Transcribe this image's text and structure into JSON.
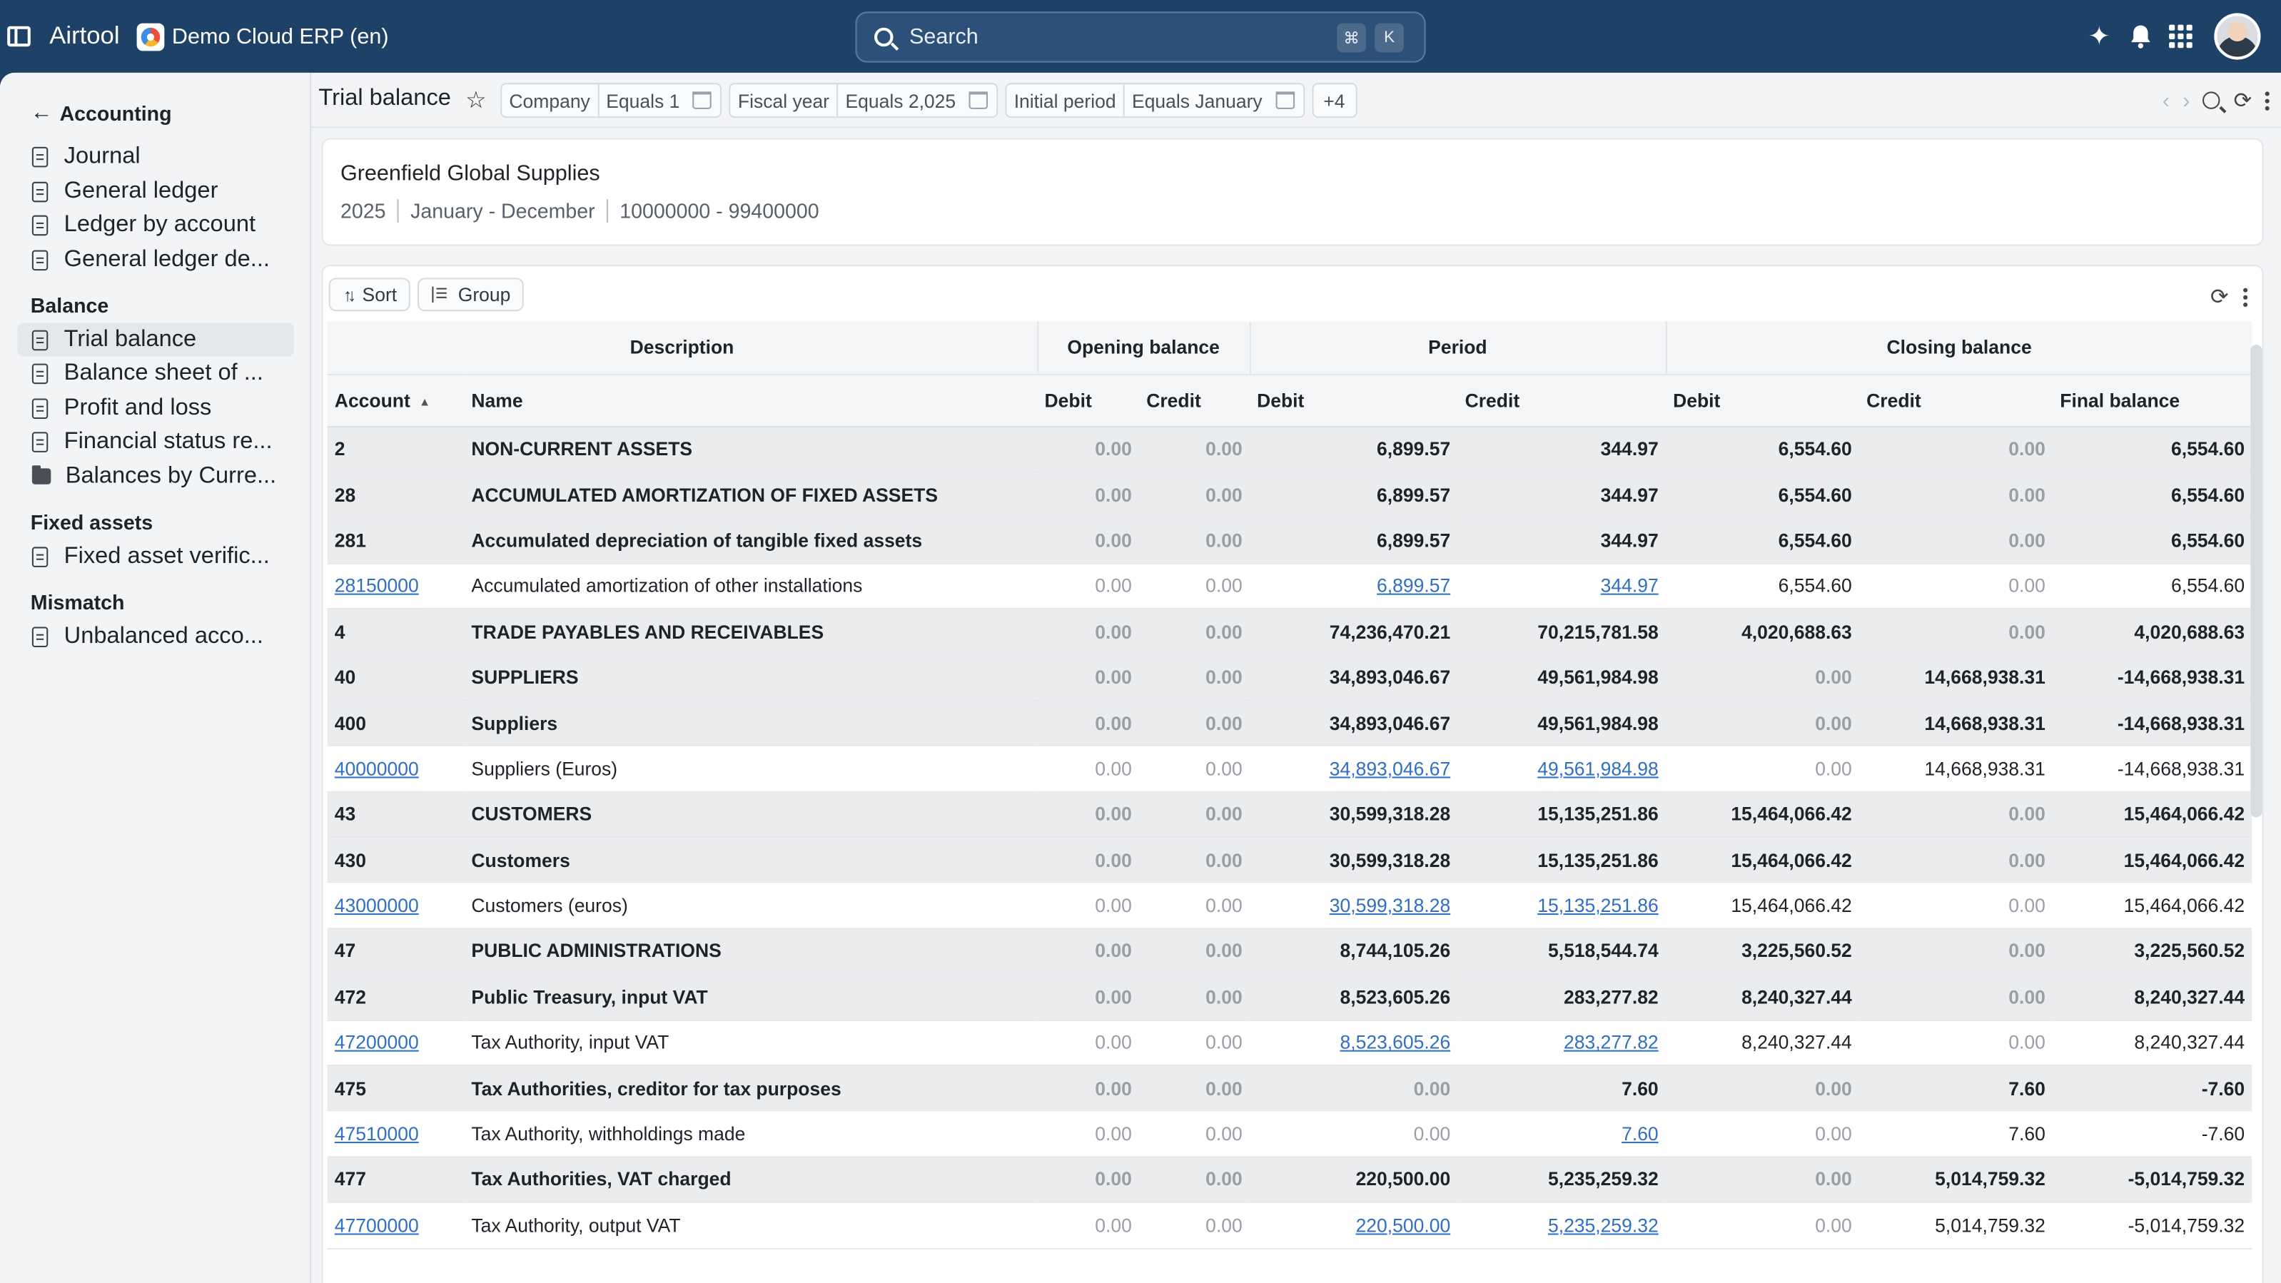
{
  "topbar": {
    "app_name": "Airtool",
    "org_name": "Demo Cloud ERP (en)",
    "search_placeholder": "Search",
    "kbd_cmd": "⌘",
    "kbd_key": "K"
  },
  "sidebar": {
    "back_label": "Accounting",
    "sections": [
      {
        "title": "",
        "items": [
          {
            "label": "Journal",
            "icon": "document-icon"
          },
          {
            "label": "General ledger",
            "icon": "document-icon"
          },
          {
            "label": "Ledger by account",
            "icon": "document-icon"
          },
          {
            "label": "General ledger de...",
            "icon": "document-icon"
          }
        ]
      },
      {
        "title": "Balance",
        "items": [
          {
            "label": "Trial balance",
            "icon": "document-icon",
            "active": true
          },
          {
            "label": "Balance sheet of ...",
            "icon": "document-icon"
          },
          {
            "label": "Profit and loss",
            "icon": "document-icon"
          },
          {
            "label": "Financial status re...",
            "icon": "document-icon"
          },
          {
            "label": "Balances by Curre...",
            "icon": "folder-icon"
          }
        ]
      },
      {
        "title": "Fixed assets",
        "items": [
          {
            "label": "Fixed asset verific...",
            "icon": "document-icon"
          }
        ]
      },
      {
        "title": "Mismatch",
        "items": [
          {
            "label": "Unbalanced acco...",
            "icon": "document-icon"
          }
        ]
      }
    ]
  },
  "header": {
    "title": "Trial balance",
    "filters": [
      {
        "field": "Company",
        "op": "Equals 1"
      },
      {
        "field": "Fiscal year",
        "op": "Equals 2,025"
      },
      {
        "field": "Initial period",
        "op": "Equals January"
      }
    ],
    "more_filters": "+4"
  },
  "report": {
    "company": "Greenfield Global Supplies",
    "year": "2025",
    "period": "January - December",
    "account_range": "10000000 - 99400000"
  },
  "toolbar": {
    "sort_label": "Sort",
    "group_label": "Group"
  },
  "table": {
    "bands": [
      "Description",
      "Opening balance",
      "Period",
      "Closing balance"
    ],
    "columns": [
      "Account",
      "Name",
      "Debit",
      "Credit",
      "Debit",
      "Credit",
      "Debit",
      "Credit",
      "Final balance"
    ],
    "rows": [
      {
        "type": "group",
        "account": "2",
        "name": "NON-CURRENT ASSETS",
        "ob_debit": "0.00",
        "ob_credit": "0.00",
        "p_debit": "6,899.57",
        "p_credit": "344.97",
        "cb_debit": "6,554.60",
        "cb_credit": "0.00",
        "final": "6,554.60"
      },
      {
        "type": "group",
        "account": "28",
        "name": "ACCUMULATED AMORTIZATION OF FIXED ASSETS",
        "ob_debit": "0.00",
        "ob_credit": "0.00",
        "p_debit": "6,899.57",
        "p_credit": "344.97",
        "cb_debit": "6,554.60",
        "cb_credit": "0.00",
        "final": "6,554.60"
      },
      {
        "type": "group",
        "account": "281",
        "name": "Accumulated depreciation of tangible fixed assets",
        "ob_debit": "0.00",
        "ob_credit": "0.00",
        "p_debit": "6,899.57",
        "p_credit": "344.97",
        "cb_debit": "6,554.60",
        "cb_credit": "0.00",
        "final": "6,554.60"
      },
      {
        "type": "leaf",
        "account": "28150000",
        "name": "Accumulated amortization of other installations",
        "ob_debit": "0.00",
        "ob_credit": "0.00",
        "p_debit": "6,899.57",
        "p_credit": "344.97",
        "cb_debit": "6,554.60",
        "cb_credit": "0.00",
        "final": "6,554.60"
      },
      {
        "type": "group",
        "account": "4",
        "name": "TRADE PAYABLES AND RECEIVABLES",
        "ob_debit": "0.00",
        "ob_credit": "0.00",
        "p_debit": "74,236,470.21",
        "p_credit": "70,215,781.58",
        "cb_debit": "4,020,688.63",
        "cb_credit": "0.00",
        "final": "4,020,688.63"
      },
      {
        "type": "group",
        "account": "40",
        "name": "SUPPLIERS",
        "ob_debit": "0.00",
        "ob_credit": "0.00",
        "p_debit": "34,893,046.67",
        "p_credit": "49,561,984.98",
        "cb_debit": "0.00",
        "cb_credit": "14,668,938.31",
        "final": "-14,668,938.31"
      },
      {
        "type": "group",
        "account": "400",
        "name": "Suppliers",
        "ob_debit": "0.00",
        "ob_credit": "0.00",
        "p_debit": "34,893,046.67",
        "p_credit": "49,561,984.98",
        "cb_debit": "0.00",
        "cb_credit": "14,668,938.31",
        "final": "-14,668,938.31"
      },
      {
        "type": "leaf",
        "account": "40000000",
        "name": "Suppliers (Euros)",
        "ob_debit": "0.00",
        "ob_credit": "0.00",
        "p_debit": "34,893,046.67",
        "p_credit": "49,561,984.98",
        "cb_debit": "0.00",
        "cb_credit": "14,668,938.31",
        "final": "-14,668,938.31"
      },
      {
        "type": "group",
        "account": "43",
        "name": "CUSTOMERS",
        "ob_debit": "0.00",
        "ob_credit": "0.00",
        "p_debit": "30,599,318.28",
        "p_credit": "15,135,251.86",
        "cb_debit": "15,464,066.42",
        "cb_credit": "0.00",
        "final": "15,464,066.42"
      },
      {
        "type": "group",
        "account": "430",
        "name": "Customers",
        "ob_debit": "0.00",
        "ob_credit": "0.00",
        "p_debit": "30,599,318.28",
        "p_credit": "15,135,251.86",
        "cb_debit": "15,464,066.42",
        "cb_credit": "0.00",
        "final": "15,464,066.42"
      },
      {
        "type": "leaf",
        "account": "43000000",
        "name": "Customers (euros)",
        "ob_debit": "0.00",
        "ob_credit": "0.00",
        "p_debit": "30,599,318.28",
        "p_credit": "15,135,251.86",
        "cb_debit": "15,464,066.42",
        "cb_credit": "0.00",
        "final": "15,464,066.42"
      },
      {
        "type": "group",
        "account": "47",
        "name": "PUBLIC ADMINISTRATIONS",
        "ob_debit": "0.00",
        "ob_credit": "0.00",
        "p_debit": "8,744,105.26",
        "p_credit": "5,518,544.74",
        "cb_debit": "3,225,560.52",
        "cb_credit": "0.00",
        "final": "3,225,560.52"
      },
      {
        "type": "group",
        "account": "472",
        "name": "Public Treasury, input VAT",
        "ob_debit": "0.00",
        "ob_credit": "0.00",
        "p_debit": "8,523,605.26",
        "p_credit": "283,277.82",
        "cb_debit": "8,240,327.44",
        "cb_credit": "0.00",
        "final": "8,240,327.44"
      },
      {
        "type": "leaf",
        "account": "47200000",
        "name": "Tax Authority, input VAT",
        "ob_debit": "0.00",
        "ob_credit": "0.00",
        "p_debit": "8,523,605.26",
        "p_credit": "283,277.82",
        "cb_debit": "8,240,327.44",
        "cb_credit": "0.00",
        "final": "8,240,327.44"
      },
      {
        "type": "group",
        "account": "475",
        "name": "Tax Authorities, creditor for tax purposes",
        "ob_debit": "0.00",
        "ob_credit": "0.00",
        "p_debit": "0.00",
        "p_credit": "7.60",
        "cb_debit": "0.00",
        "cb_credit": "7.60",
        "final": "-7.60"
      },
      {
        "type": "leaf",
        "account": "47510000",
        "name": "Tax Authority, withholdings made",
        "ob_debit": "0.00",
        "ob_credit": "0.00",
        "p_debit": "0.00",
        "p_credit": "7.60",
        "cb_debit": "0.00",
        "cb_credit": "7.60",
        "final": "-7.60"
      },
      {
        "type": "group",
        "account": "477",
        "name": "Tax Authorities, VAT charged",
        "ob_debit": "0.00",
        "ob_credit": "0.00",
        "p_debit": "220,500.00",
        "p_credit": "5,235,259.32",
        "cb_debit": "0.00",
        "cb_credit": "5,014,759.32",
        "final": "-5,014,759.32"
      },
      {
        "type": "leaf",
        "account": "47700000",
        "name": "Tax Authority, output VAT",
        "ob_debit": "0.00",
        "ob_credit": "0.00",
        "p_debit": "220,500.00",
        "p_credit": "5,235,259.32",
        "cb_debit": "0.00",
        "cb_credit": "5,014,759.32",
        "final": "-5,014,759.32"
      }
    ]
  }
}
